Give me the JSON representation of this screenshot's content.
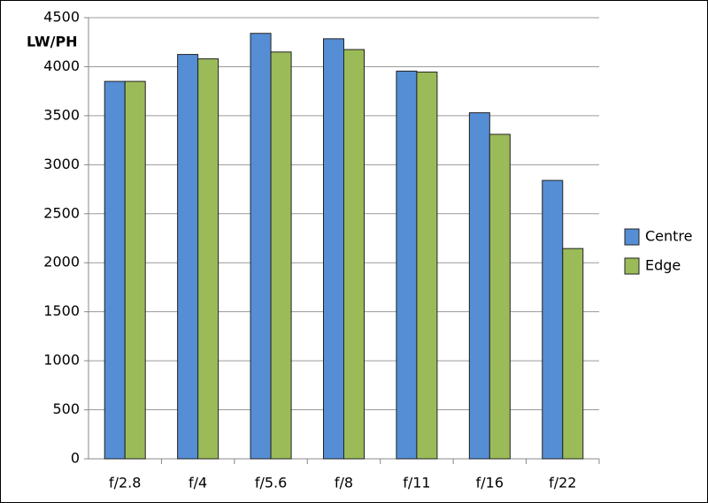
{
  "chart_data": {
    "type": "bar",
    "y_label": "LW/PH",
    "categories": [
      "f/2.8",
      "f/4",
      "f/5.6",
      "f/8",
      "f/11",
      "f/16",
      "f/22"
    ],
    "series": [
      {
        "name": "Centre",
        "color": "#558ed5",
        "values": [
          3850,
          4125,
          4340,
          4285,
          3955,
          3530,
          2840
        ]
      },
      {
        "name": "Edge",
        "color": "#9bbb59",
        "values": [
          3850,
          4080,
          4150,
          4175,
          3945,
          3310,
          2145
        ]
      }
    ],
    "ylim": [
      0,
      4500
    ],
    "yticks": [
      0,
      500,
      1000,
      1500,
      2000,
      2500,
      3000,
      3500,
      4000,
      4500
    ],
    "grid": true,
    "legend": "right"
  }
}
